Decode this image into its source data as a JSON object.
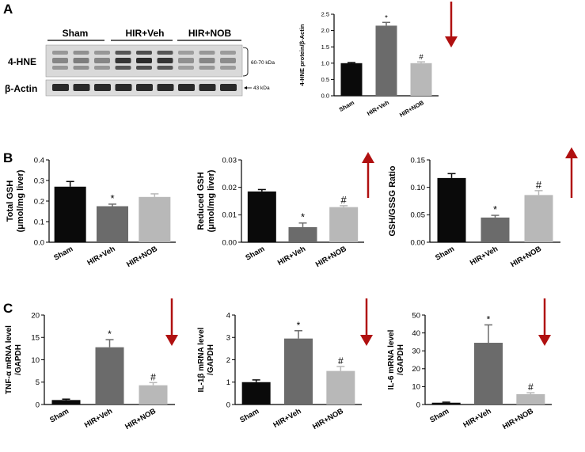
{
  "panels": {
    "A": "A",
    "B": "B",
    "C": "C"
  },
  "colors": {
    "Sham": "#0a0a0a",
    "HIR+Veh": "#6b6b6b",
    "HIR+NOB": "#b8b8b8",
    "arrow": "#b01010"
  },
  "blot": {
    "groups": [
      "Sham",
      "HIR+Veh",
      "HIR+NOB"
    ],
    "row_labels": [
      "4-HNE",
      "β-Actin"
    ],
    "size_labels": [
      "60-70 kDa",
      "43 kDa"
    ]
  },
  "chart_data": [
    {
      "id": "a1",
      "type": "bar",
      "categories": [
        "Sham",
        "HIR+Veh",
        "HIR+NOB"
      ],
      "values": [
        1.0,
        2.15,
        1.0
      ],
      "errors": [
        0.02,
        0.1,
        0.04
      ],
      "markers": [
        "",
        "*",
        "#"
      ],
      "ylabel": "4-HNE protein/β-Actin",
      "ylim": [
        0,
        2.5
      ],
      "yticks": [
        "0.0",
        "0.5",
        "1.0",
        "1.5",
        "2.0",
        "2.5"
      ],
      "arrow": "down"
    },
    {
      "id": "b1",
      "type": "bar",
      "categories": [
        "Sham",
        "HIR+Veh",
        "HIR+NOB"
      ],
      "values": [
        0.27,
        0.175,
        0.22
      ],
      "errors": [
        0.025,
        0.01,
        0.015
      ],
      "markers": [
        "",
        "*",
        ""
      ],
      "ylabel": "Total GSH (μmol/mg liver)",
      "ylim": [
        0,
        0.4
      ],
      "yticks": [
        "0.0",
        "0.1",
        "0.2",
        "0.3",
        "0.4"
      ],
      "arrow": "none"
    },
    {
      "id": "b2",
      "type": "bar",
      "categories": [
        "Sham",
        "HIR+Veh",
        "HIR+NOB"
      ],
      "values": [
        0.0185,
        0.0055,
        0.0128
      ],
      "errors": [
        0.0007,
        0.0015,
        0.0005
      ],
      "markers": [
        "",
        "*",
        "#"
      ],
      "ylabel": "Reduced GSH (μmol/mg liver)",
      "ylim": [
        0,
        0.03
      ],
      "yticks": [
        "0.00",
        "0.01",
        "0.02",
        "0.03"
      ],
      "arrow": "up"
    },
    {
      "id": "b3",
      "type": "bar",
      "categories": [
        "Sham",
        "HIR+Veh",
        "HIR+NOB"
      ],
      "values": [
        0.117,
        0.045,
        0.086
      ],
      "errors": [
        0.008,
        0.004,
        0.008
      ],
      "markers": [
        "",
        "*",
        "#"
      ],
      "ylabel": "GSH/GSSG Ratio",
      "ylim": [
        0,
        0.15
      ],
      "yticks": [
        "0.00",
        "0.05",
        "0.10",
        "0.15"
      ],
      "arrow": "up"
    },
    {
      "id": "c1",
      "type": "bar",
      "categories": [
        "Sham",
        "HIR+Veh",
        "HIR+NOB"
      ],
      "values": [
        1.0,
        12.8,
        4.3
      ],
      "errors": [
        0.2,
        1.7,
        0.6
      ],
      "markers": [
        "",
        "*",
        "#"
      ],
      "ylabel": "TNF-α mRNA level /GAPDH",
      "ylim": [
        0,
        20
      ],
      "yticks": [
        "0",
        "5",
        "10",
        "15",
        "20"
      ],
      "arrow": "down"
    },
    {
      "id": "c2",
      "type": "bar",
      "categories": [
        "Sham",
        "HIR+Veh",
        "HIR+NOB"
      ],
      "values": [
        1.0,
        2.95,
        1.5
      ],
      "errors": [
        0.1,
        0.35,
        0.2
      ],
      "markers": [
        "",
        "*",
        "#"
      ],
      "ylabel": "IL-1β mRNA level /GAPDH",
      "ylim": [
        0,
        4
      ],
      "yticks": [
        "0",
        "1",
        "2",
        "3",
        "4"
      ],
      "arrow": "down"
    },
    {
      "id": "c3",
      "type": "bar",
      "categories": [
        "Sham",
        "HIR+Veh",
        "HIR+NOB"
      ],
      "values": [
        1.0,
        34.5,
        5.8
      ],
      "errors": [
        0.3,
        10.0,
        0.8
      ],
      "markers": [
        "",
        "*",
        "#"
      ],
      "ylabel": "IL-6 mRNA level /GAPDH",
      "ylim": [
        0,
        50
      ],
      "yticks": [
        "0",
        "10",
        "20",
        "30",
        "40",
        "50"
      ],
      "arrow": "down"
    }
  ]
}
